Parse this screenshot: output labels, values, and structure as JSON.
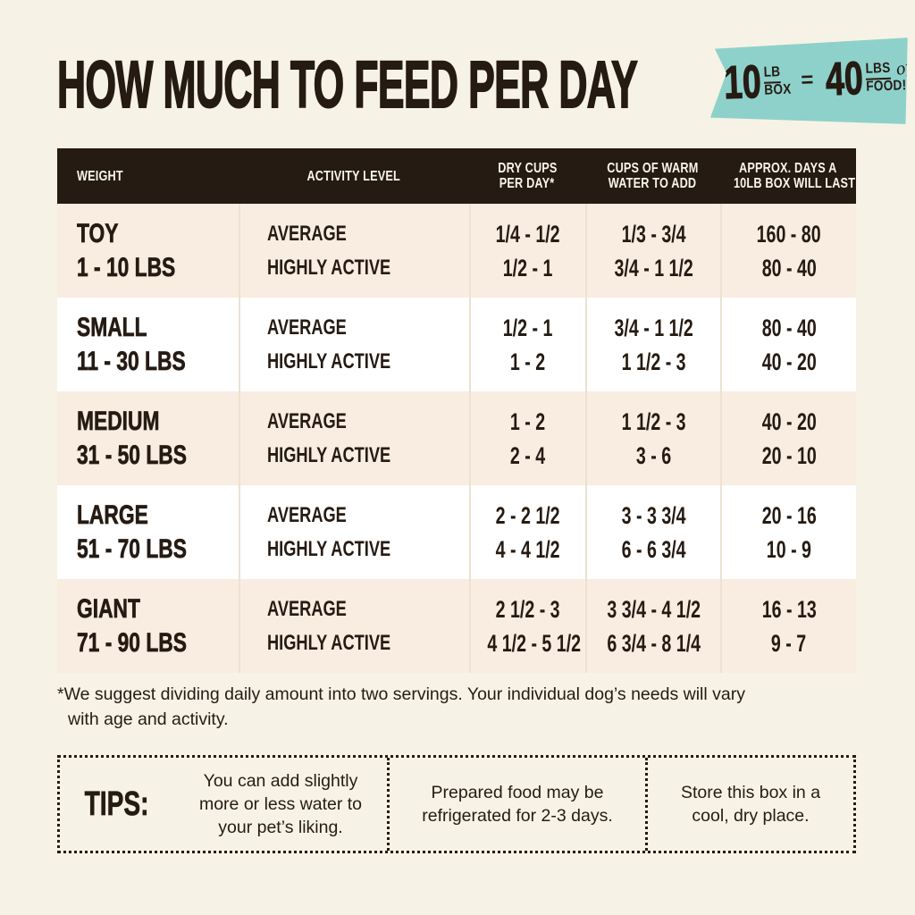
{
  "colors": {
    "page_bg": "#f7f2e6",
    "ink": "#251b13",
    "badge_teal": "#8ed1cb",
    "row_pink": "#f9ece1",
    "row_white": "#ffffff",
    "header_bg": "#251b13",
    "header_text": "#faf6ec",
    "divider": "#ece1d2"
  },
  "header": {
    "title": "HOW MUCH TO FEED PER DAY",
    "badge": {
      "lhs_value": "10",
      "lhs_unit_top": "LB",
      "lhs_unit_bottom": "BOX",
      "equals": "=",
      "rhs_value": "40",
      "rhs_unit_top": "LBS",
      "rhs_script": "of",
      "rhs_unit_bottom": "FOOD!"
    }
  },
  "table": {
    "columns": {
      "weight": "WEIGHT",
      "activity": "ACTIVITY LEVEL",
      "cups_line1": "DRY CUPS",
      "cups_line2": "PER DAY*",
      "water_line1": "CUPS OF WARM",
      "water_line2": "WATER TO ADD",
      "days_line1": "APPROX. DAYS A",
      "days_line2": "10LB BOX WILL LAST"
    },
    "activity_labels": {
      "average": "AVERAGE",
      "active": "HIGHLY ACTIVE"
    },
    "rows": [
      {
        "name": "TOY",
        "range": "1 - 10 LBS",
        "average": {
          "cups": "1/4 - 1/2",
          "water": "1/3 - 3/4",
          "days": "160 - 80"
        },
        "active": {
          "cups": "1/2 - 1",
          "water": "3/4 - 1 1/2",
          "days": "80 - 40"
        }
      },
      {
        "name": "SMALL",
        "range": "11 - 30 LBS",
        "average": {
          "cups": "1/2 - 1",
          "water": "3/4 - 1 1/2",
          "days": "80 - 40"
        },
        "active": {
          "cups": "1 - 2",
          "water": "1 1/2 - 3",
          "days": "40 - 20"
        }
      },
      {
        "name": "MEDIUM",
        "range": "31 - 50 LBS",
        "average": {
          "cups": "1 - 2",
          "water": "1 1/2 - 3",
          "days": "40 - 20"
        },
        "active": {
          "cups": "2 - 4",
          "water": "3 - 6",
          "days": "20 - 10"
        }
      },
      {
        "name": "LARGE",
        "range": "51 - 70 LBS",
        "average": {
          "cups": "2 - 2 1/2",
          "water": "3 - 3 3/4",
          "days": "20 - 16"
        },
        "active": {
          "cups": "4 - 4 1/2",
          "water": "6 - 6 3/4",
          "days": "10 - 9"
        }
      },
      {
        "name": "GIANT",
        "range": "71 - 90 LBS",
        "average": {
          "cups": "2 1/2 - 3",
          "water": "3 3/4 - 4 1/2",
          "days": "16 - 13"
        },
        "active": {
          "cups": "4 1/2 - 5 1/2",
          "water": "6 3/4 - 8 1/4",
          "days": "9 - 7"
        }
      }
    ]
  },
  "footnote": {
    "line1": "*We suggest dividing daily amount into two servings. Your individual dog’s needs will vary",
    "line2": "with age and activity."
  },
  "tips": {
    "label": "TIPS:",
    "items": [
      "You can add slightly more or less water to your pet’s liking.",
      "Prepared food may be refrigerated for 2-3 days.",
      "Store this box in a cool, dry place."
    ]
  }
}
